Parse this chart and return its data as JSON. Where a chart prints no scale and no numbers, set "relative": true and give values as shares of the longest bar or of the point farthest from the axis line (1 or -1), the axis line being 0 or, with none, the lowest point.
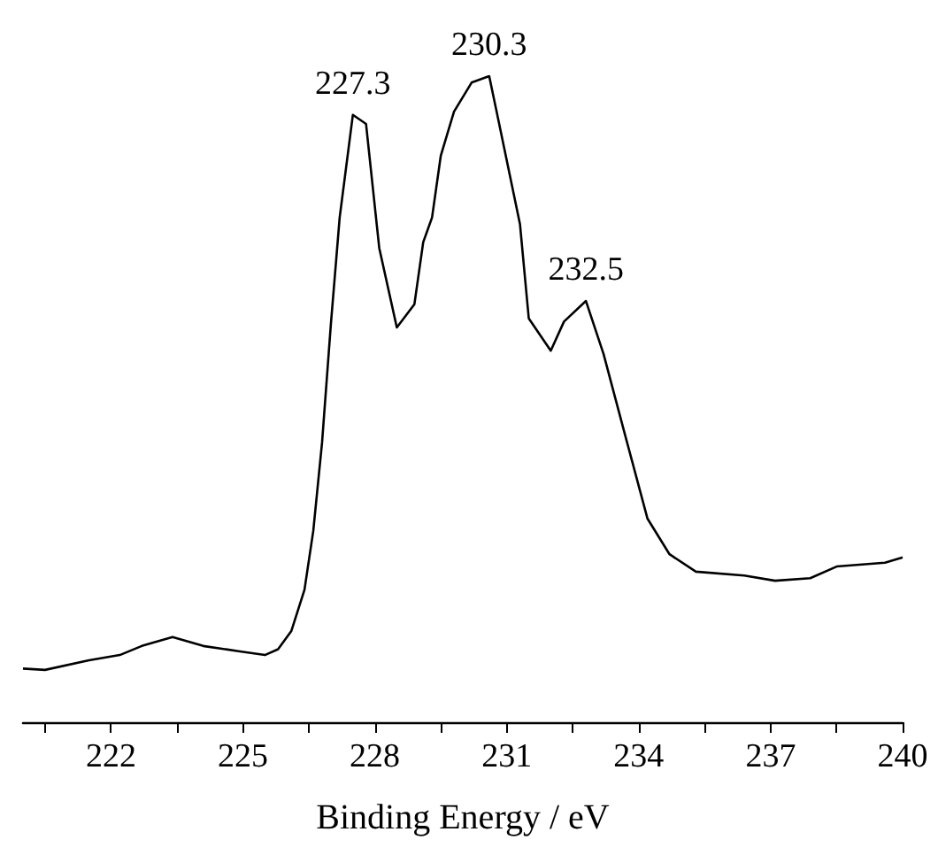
{
  "chart_data": {
    "type": "line",
    "relative": true,
    "xlabel": "Binding Energy / eV",
    "xlim": [
      220,
      240
    ],
    "xticks": [
      {
        "value": 220.5,
        "label": null
      },
      222,
      {
        "value": 223.5,
        "label": null
      },
      225,
      {
        "value": 226.5,
        "label": null
      },
      228,
      {
        "value": 229.5,
        "label": null
      },
      231,
      {
        "value": 232.5,
        "label": null
      },
      234,
      {
        "value": 235.5,
        "label": null
      },
      237,
      {
        "value": 238.5,
        "label": null
      },
      240
    ],
    "x": [
      220.0,
      220.5,
      221.5,
      222.2,
      222.7,
      223.4,
      224.1,
      224.9,
      225.5,
      225.8,
      226.1,
      226.4,
      226.6,
      226.8,
      227.0,
      227.2,
      227.5,
      227.8,
      228.1,
      228.5,
      228.9,
      229.1,
      229.3,
      229.5,
      229.8,
      230.2,
      230.6,
      230.8,
      231.3,
      231.5,
      232.0,
      232.3,
      232.8,
      233.2,
      233.7,
      234.2,
      234.7,
      235.3,
      236.4,
      237.1,
      237.9,
      238.5,
      239.6,
      240.0
    ],
    "series": [
      {
        "color": "#000000",
        "values": [
          0.083,
          0.081,
          0.096,
          0.104,
          0.118,
          0.132,
          0.118,
          0.11,
          0.104,
          0.113,
          0.141,
          0.205,
          0.296,
          0.433,
          0.616,
          0.781,
          0.94,
          0.926,
          0.734,
          0.611,
          0.647,
          0.743,
          0.781,
          0.877,
          0.945,
          0.99,
          1,
          0.935,
          0.771,
          0.625,
          0.575,
          0.62,
          0.652,
          0.57,
          0.442,
          0.315,
          0.26,
          0.233,
          0.227,
          0.219,
          0.223,
          0.241,
          0.247,
          0.255
        ]
      }
    ],
    "annotations": [
      {
        "text": "227.3",
        "x": 227.5,
        "y": 0.94
      },
      {
        "text": "230.3",
        "x": 230.6,
        "y": 1
      },
      {
        "text": "232.5",
        "x": 232.8,
        "y": 0.652
      }
    ],
    "marker": "none",
    "line_style": "solid"
  }
}
